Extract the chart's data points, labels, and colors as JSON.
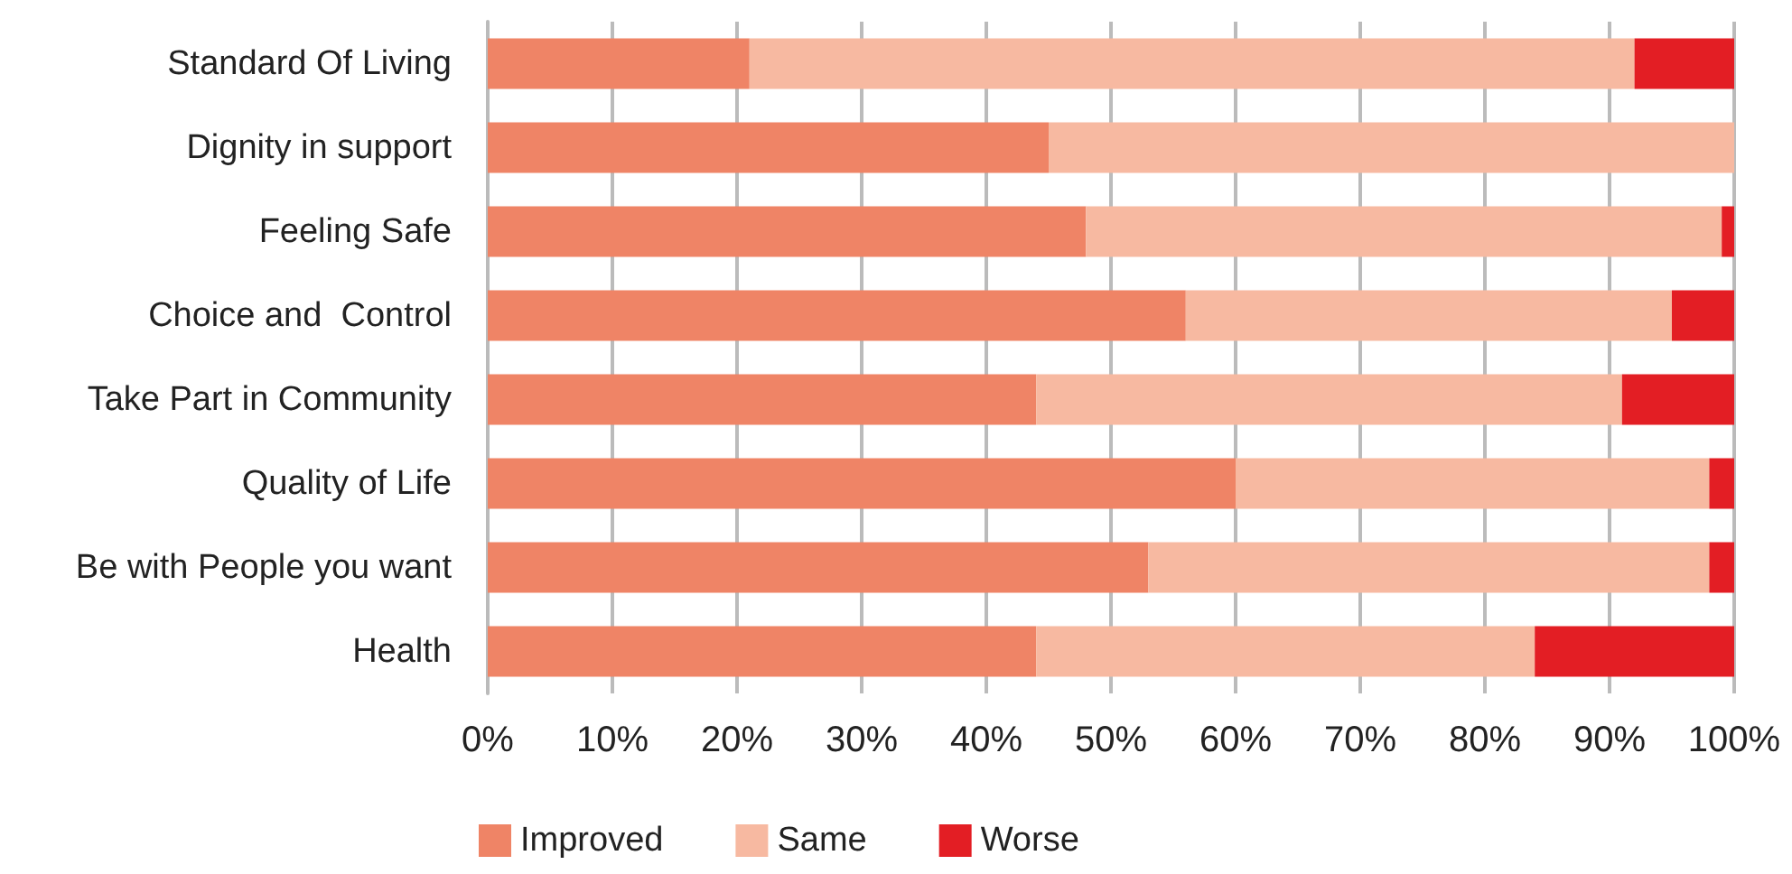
{
  "chart_data": {
    "type": "bar",
    "orientation": "horizontal",
    "stacked": true,
    "categories": [
      "Standard Of Living",
      "Dignity in support",
      "Feeling Safe",
      "Choice and  Control",
      "Take Part in Community",
      "Quality of Life",
      "Be with People you want",
      "Health"
    ],
    "series": [
      {
        "name": "Improved",
        "color": "#ef8466",
        "values": [
          21,
          45,
          48,
          56,
          44,
          60,
          53,
          44
        ]
      },
      {
        "name": "Same",
        "color": "#f7b9a1",
        "values": [
          71,
          55,
          51,
          39,
          47,
          38,
          45,
          40
        ]
      },
      {
        "name": "Worse",
        "color": "#e31e24",
        "values": [
          8,
          0,
          1,
          5,
          9,
          2,
          2,
          16
        ]
      }
    ],
    "xlim": [
      0,
      100
    ],
    "xticks": [
      {
        "value": 0,
        "label": "0%"
      },
      {
        "value": 10,
        "label": "10%"
      },
      {
        "value": 20,
        "label": "20%"
      },
      {
        "value": 30,
        "label": "30%"
      },
      {
        "value": 40,
        "label": "40%"
      },
      {
        "value": 50,
        "label": "50%"
      },
      {
        "value": 60,
        "label": "60%"
      },
      {
        "value": 70,
        "label": "70%"
      },
      {
        "value": 80,
        "label": "80%"
      },
      {
        "value": 90,
        "label": "90%"
      },
      {
        "value": 100,
        "label": "100%"
      }
    ],
    "grid": "x",
    "legend": "bottom"
  }
}
